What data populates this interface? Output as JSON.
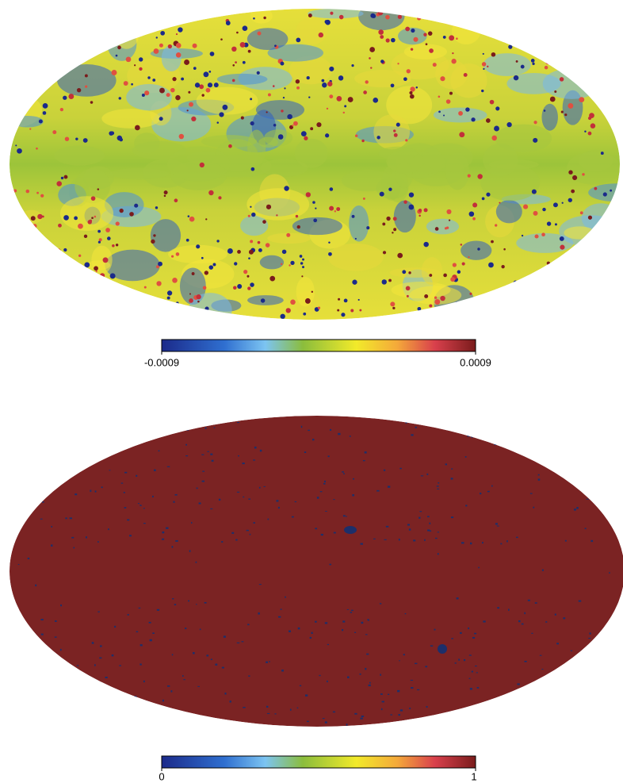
{
  "panels": [
    {
      "colorbar": {
        "min": -0.0009,
        "max": 0.0009
      }
    },
    {
      "colorbar": {
        "min": 0,
        "max": 1
      }
    }
  ]
}
